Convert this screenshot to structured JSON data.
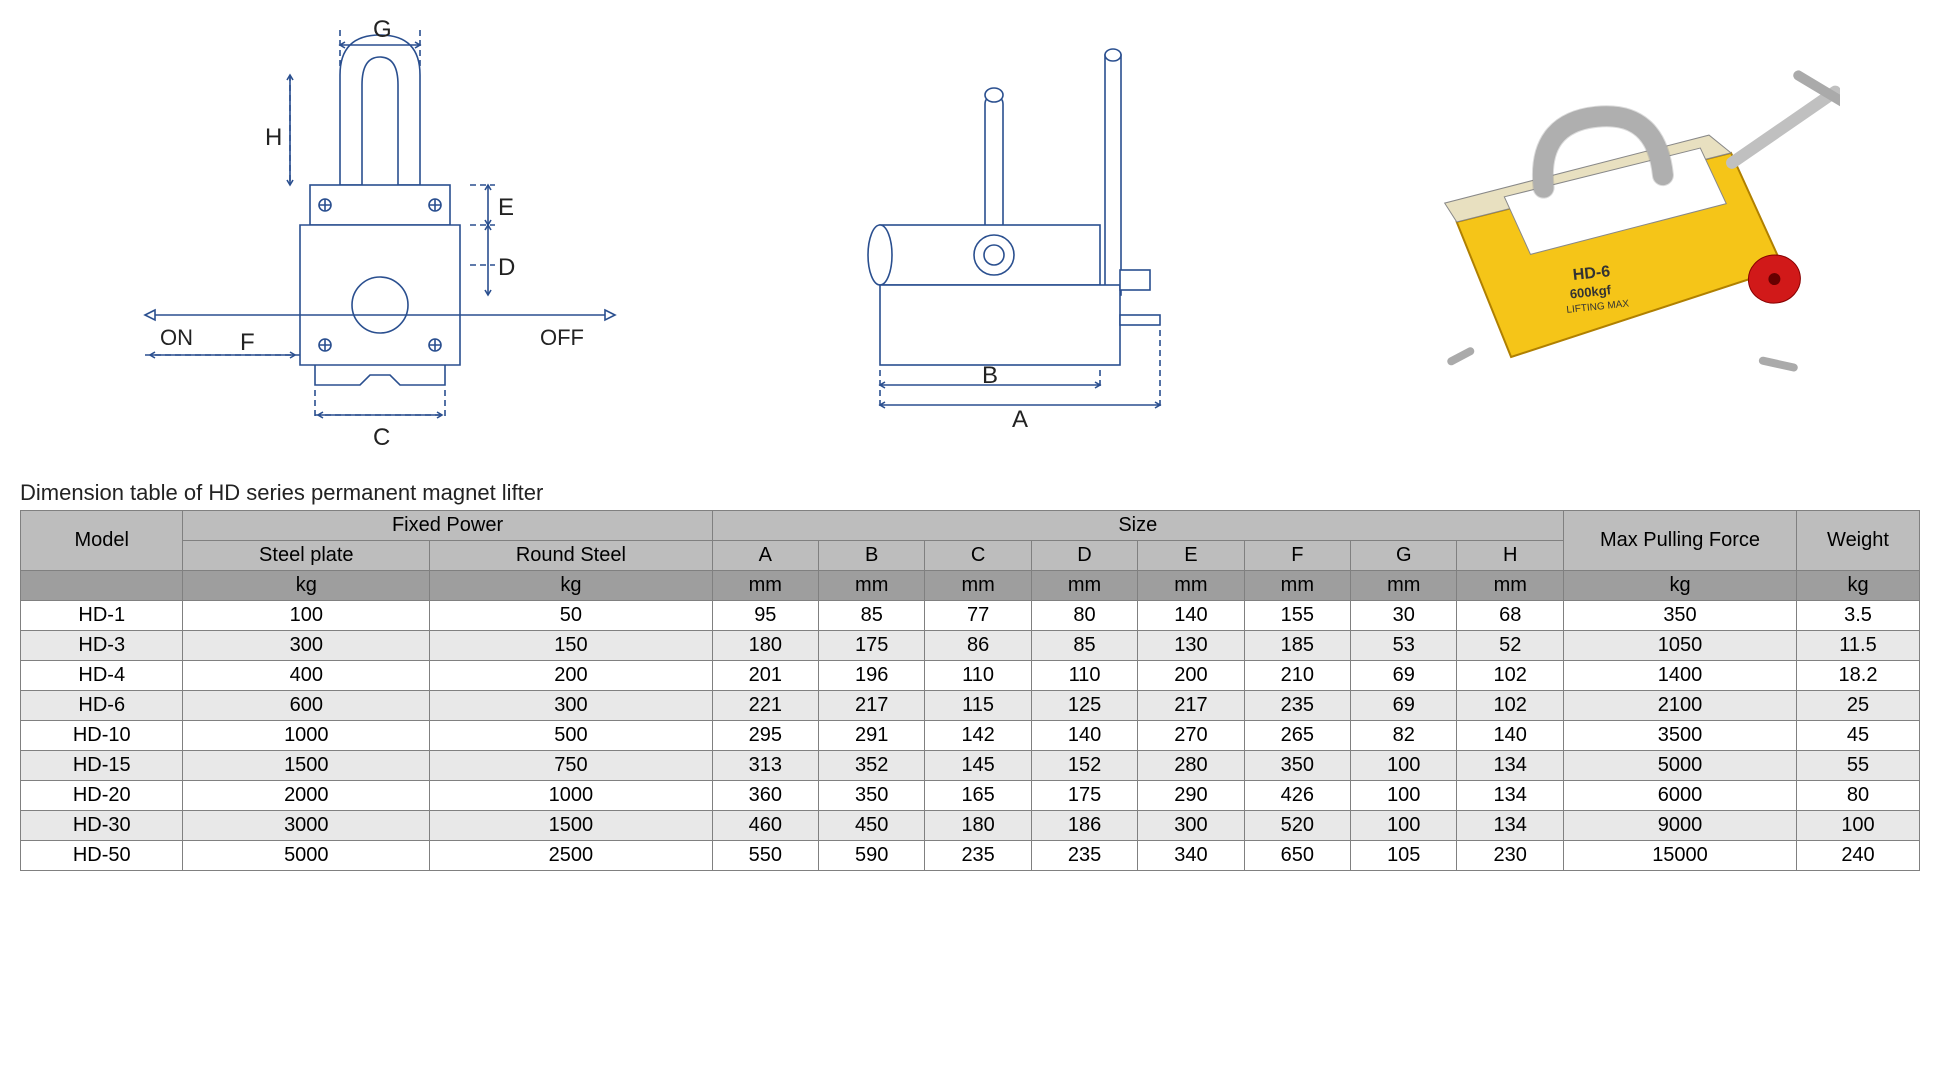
{
  "diagrams": {
    "front": {
      "labels": {
        "G": "G",
        "H": "H",
        "E": "E",
        "D": "D",
        "F": "F",
        "C": "C",
        "ON": "ON",
        "OFF": "OFF"
      },
      "stroke": "#2a4f8f",
      "bg": "#ffffff"
    },
    "side": {
      "labels": {
        "A": "A",
        "B": "B"
      },
      "stroke": "#2a4f8f",
      "bg": "#ffffff"
    },
    "photo": {
      "model_label": "HD-6",
      "capacity_label": "600kgf",
      "lifting_label": "LIFTING MAX",
      "body_color": "#f5c518",
      "knob_color": "#d11919",
      "handle_color": "#c0c0c0"
    }
  },
  "table": {
    "title": "Dimension table of HD series permanent magnet lifter",
    "header_bg": "#bdbdbd",
    "unit_bg": "#9e9e9e",
    "stripe_bg": "#e8e8e8",
    "border_color": "#808080",
    "columns": {
      "model": "Model",
      "fixed_power": "Fixed Power",
      "steel_plate": "Steel plate",
      "round_steel": "Round Steel",
      "size": "Size",
      "A": "A",
      "B": "B",
      "C": "C",
      "D": "D",
      "E": "E",
      "F": "F",
      "G": "G",
      "H": "H",
      "max_pulling": "Max Pulling Force",
      "weight": "Weight"
    },
    "units": {
      "steel_plate": "kg",
      "round_steel": "kg",
      "A": "mm",
      "B": "mm",
      "C": "mm",
      "D": "mm",
      "E": "mm",
      "F": "mm",
      "G": "mm",
      "H": "mm",
      "max_pulling": "kg",
      "weight": "kg"
    },
    "rows": [
      {
        "model": "HD-1",
        "steel_plate": "100",
        "round_steel": "50",
        "A": "95",
        "B": "85",
        "C": "77",
        "D": "80",
        "E": "140",
        "F": "155",
        "G": "30",
        "H": "68",
        "max_pulling": "350",
        "weight": "3.5"
      },
      {
        "model": "HD-3",
        "steel_plate": "300",
        "round_steel": "150",
        "A": "180",
        "B": "175",
        "C": "86",
        "D": "85",
        "E": "130",
        "F": "185",
        "G": "53",
        "H": "52",
        "max_pulling": "1050",
        "weight": "11.5"
      },
      {
        "model": "HD-4",
        "steel_plate": "400",
        "round_steel": "200",
        "A": "201",
        "B": "196",
        "C": "110",
        "D": "110",
        "E": "200",
        "F": "210",
        "G": "69",
        "H": "102",
        "max_pulling": "1400",
        "weight": "18.2"
      },
      {
        "model": "HD-6",
        "steel_plate": "600",
        "round_steel": "300",
        "A": "221",
        "B": "217",
        "C": "115",
        "D": "125",
        "E": "217",
        "F": "235",
        "G": "69",
        "H": "102",
        "max_pulling": "2100",
        "weight": "25"
      },
      {
        "model": "HD-10",
        "steel_plate": "1000",
        "round_steel": "500",
        "A": "295",
        "B": "291",
        "C": "142",
        "D": "140",
        "E": "270",
        "F": "265",
        "G": "82",
        "H": "140",
        "max_pulling": "3500",
        "weight": "45"
      },
      {
        "model": "HD-15",
        "steel_plate": "1500",
        "round_steel": "750",
        "A": "313",
        "B": "352",
        "C": "145",
        "D": "152",
        "E": "280",
        "F": "350",
        "G": "100",
        "H": "134",
        "max_pulling": "5000",
        "weight": "55"
      },
      {
        "model": "HD-20",
        "steel_plate": "2000",
        "round_steel": "1000",
        "A": "360",
        "B": "350",
        "C": "165",
        "D": "175",
        "E": "290",
        "F": "426",
        "G": "100",
        "H": "134",
        "max_pulling": "6000",
        "weight": "80"
      },
      {
        "model": "HD-30",
        "steel_plate": "3000",
        "round_steel": "1500",
        "A": "460",
        "B": "450",
        "C": "180",
        "D": "186",
        "E": "300",
        "F": "520",
        "G": "100",
        "H": "134",
        "max_pulling": "9000",
        "weight": "100"
      },
      {
        "model": "HD-50",
        "steel_plate": "5000",
        "round_steel": "2500",
        "A": "550",
        "B": "590",
        "C": "235",
        "D": "235",
        "E": "340",
        "F": "650",
        "G": "105",
        "H": "230",
        "max_pulling": "15000",
        "weight": "240"
      }
    ]
  }
}
